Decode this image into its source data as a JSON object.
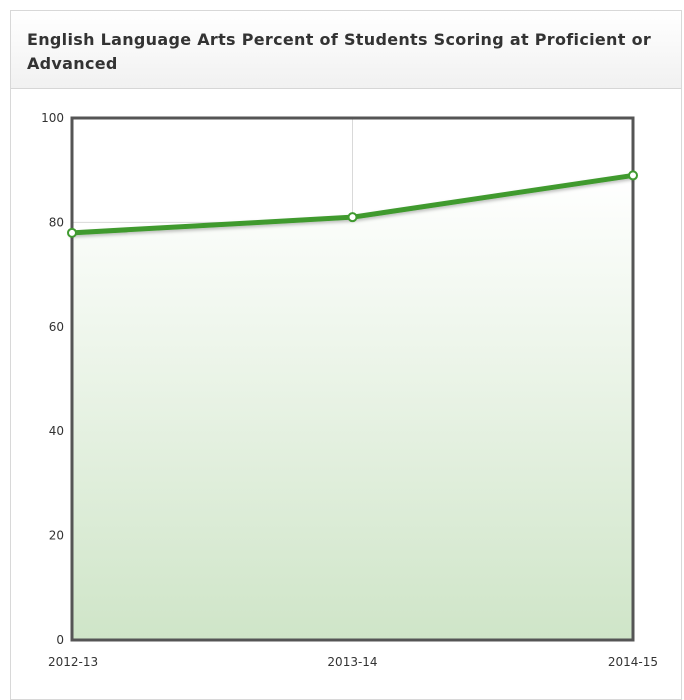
{
  "panel": {
    "title": "English Language Arts Percent of Students Scoring at Proficient or Advanced"
  },
  "chart_data": {
    "type": "area",
    "title": "English Language Arts Percent of Students Scoring at Proficient or Advanced",
    "xlabel": "",
    "ylabel": "",
    "categories": [
      "2012-13",
      "2013-14",
      "2014-15"
    ],
    "series": [
      {
        "values": [
          78,
          81,
          89
        ]
      }
    ],
    "ylim": [
      0,
      100
    ],
    "yticks": [
      0,
      20,
      40,
      60,
      80,
      100
    ],
    "grid": true,
    "legend": "none",
    "colors": {
      "line": "#3f9a2f",
      "area_top": "#ffffff",
      "area_bottom": "#cfe5c8",
      "frame": "#555555",
      "grid": "#d9d9d9"
    }
  }
}
